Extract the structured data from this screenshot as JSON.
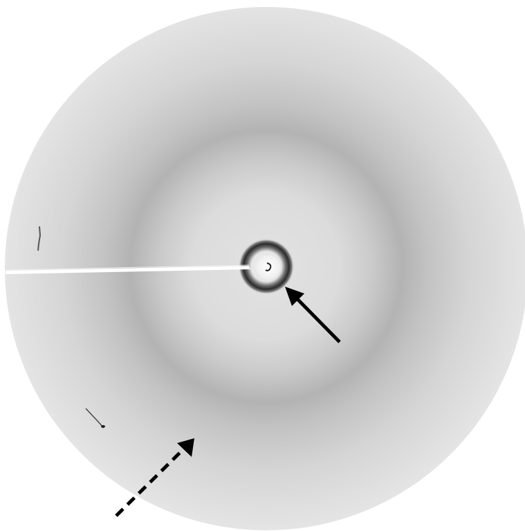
{
  "image": {
    "subject": "x-ray-diffraction-pattern",
    "background_color": "#ffffff",
    "detector_color": "#d9d9d9",
    "diffuse_ring_color": "#a9a9a9",
    "inner_ring_color": "#2b2b2b",
    "beam_stop_color": "#ffffff",
    "arrow_color": "#000000"
  },
  "annotations": [
    {
      "name": "solid-arrow",
      "style": "solid",
      "target": "inner-ring"
    },
    {
      "name": "dashed-arrow",
      "style": "dashed",
      "target": "outer-diffuse-ring"
    }
  ]
}
